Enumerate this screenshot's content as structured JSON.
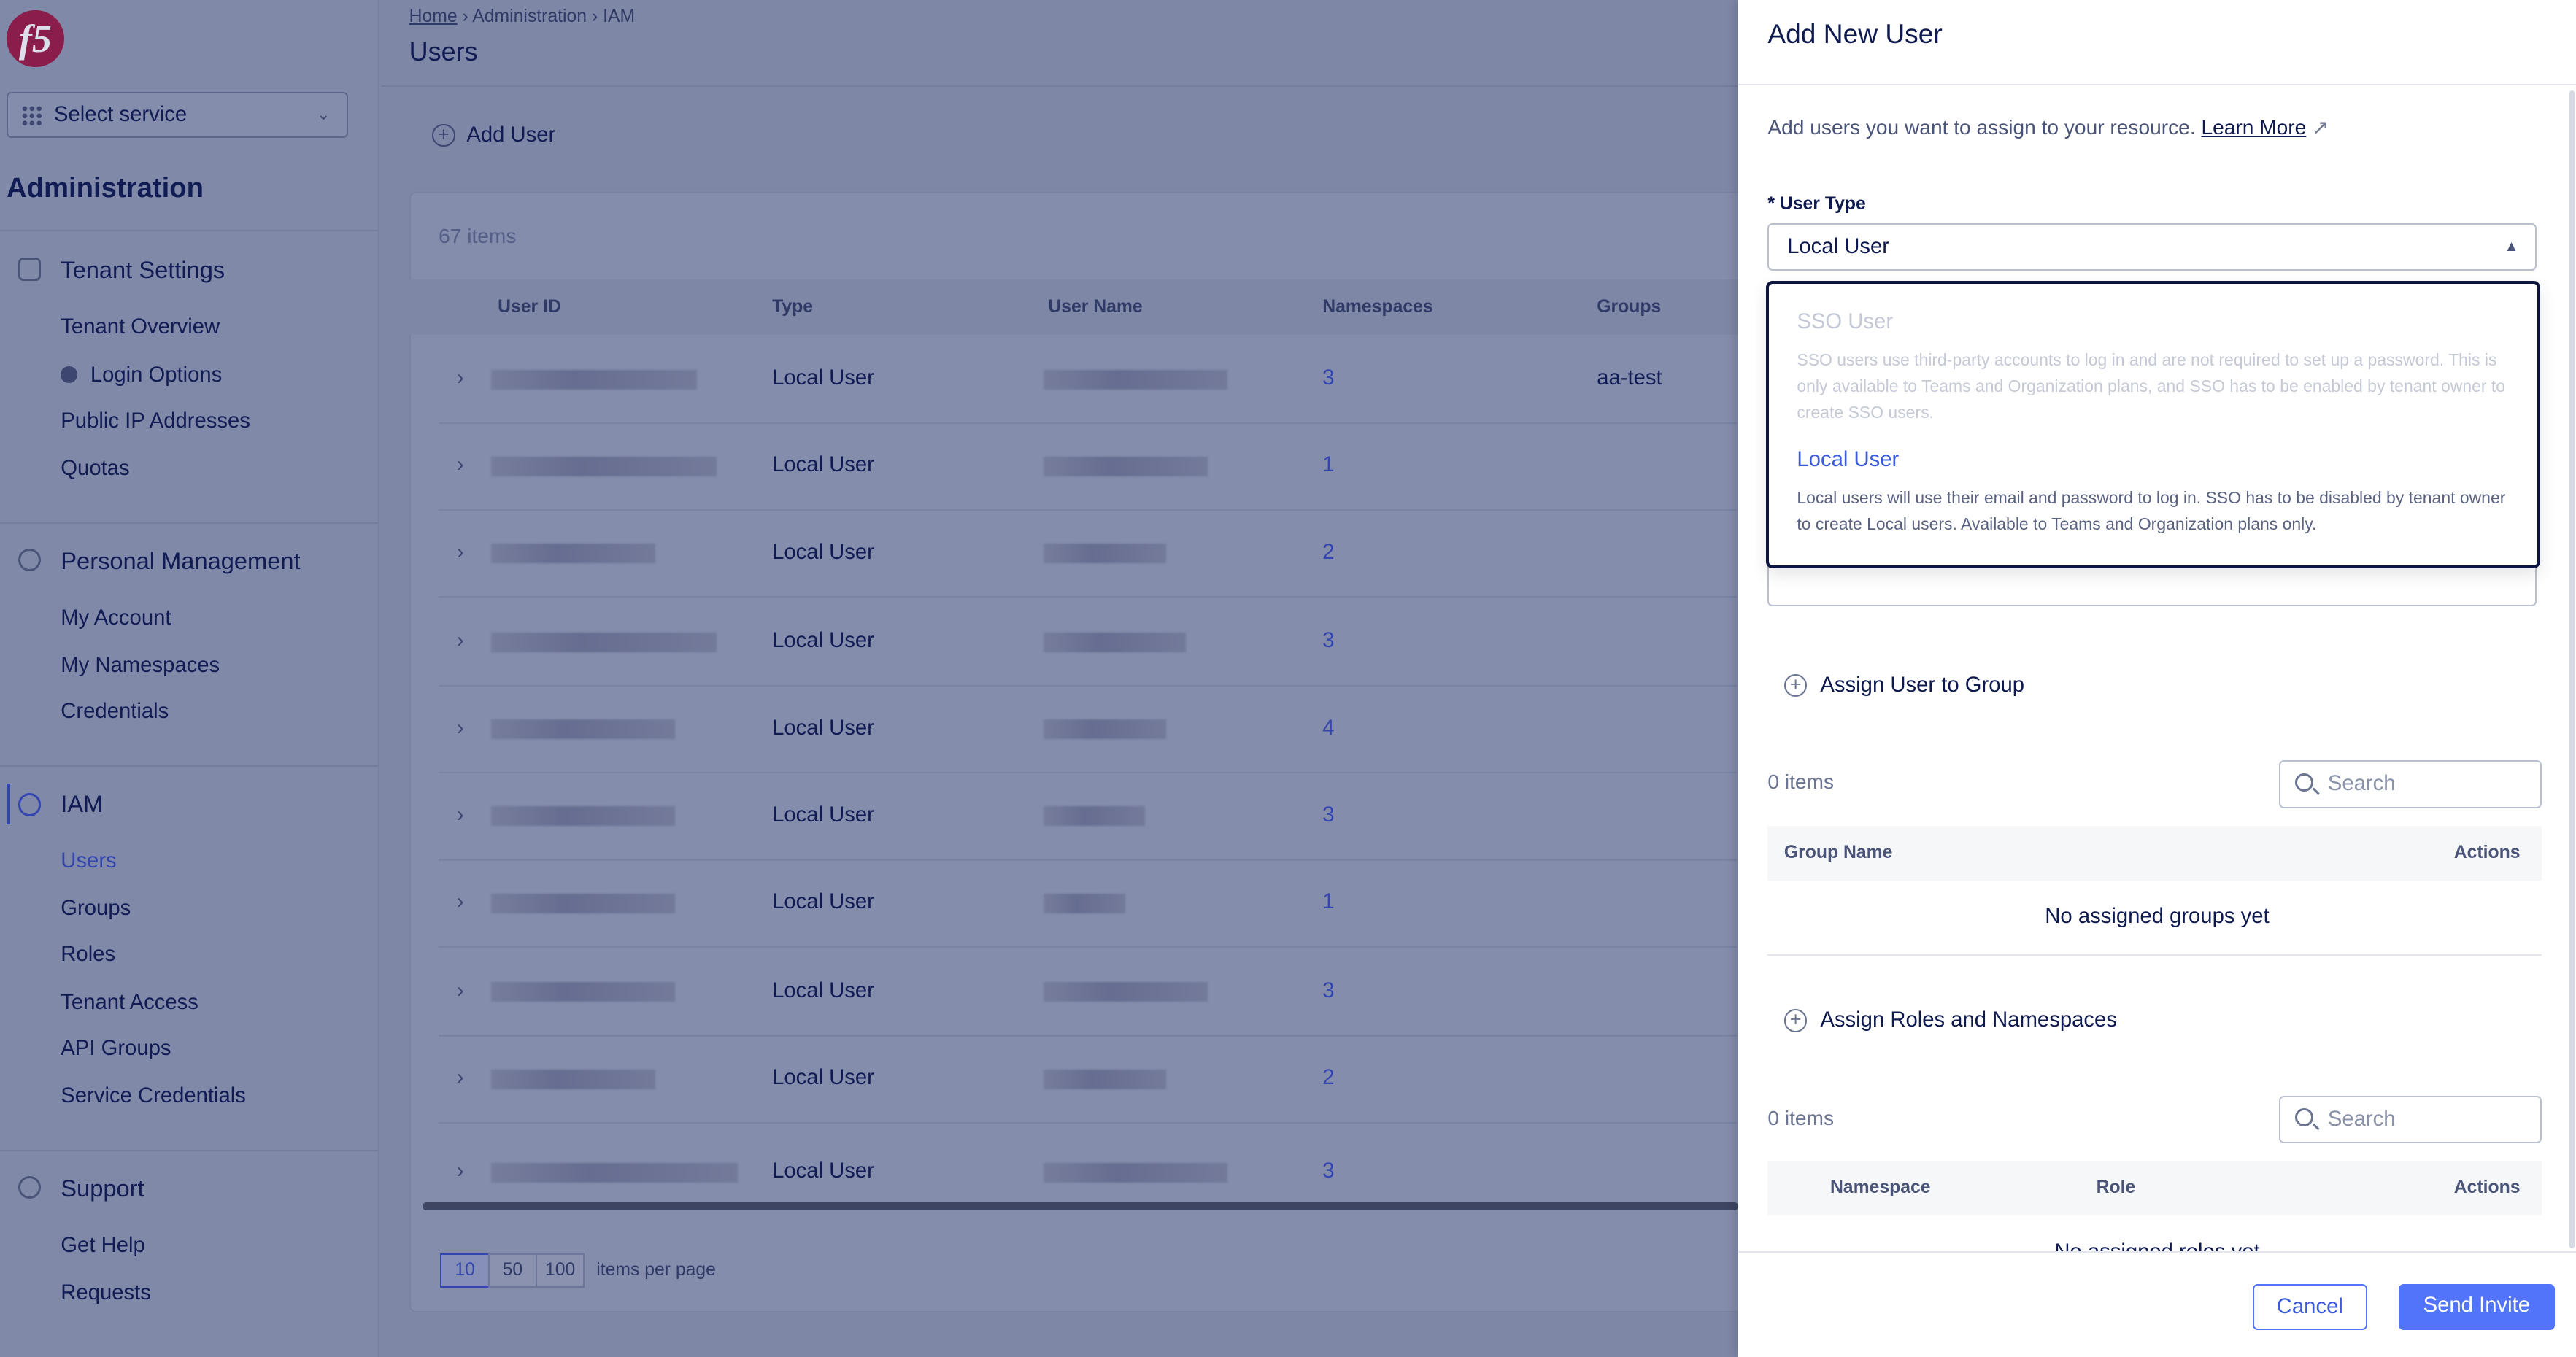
{
  "logo": "f5",
  "sidebar": {
    "service_select": "Select service",
    "heading": "Administration",
    "sections": [
      {
        "title": "Tenant Settings",
        "icon": "building-gear-icon",
        "items": [
          {
            "label": "Tenant Overview"
          },
          {
            "label": "Login Options",
            "icon": "lock-icon"
          },
          {
            "label": "Public IP Addresses"
          },
          {
            "label": "Quotas"
          }
        ]
      },
      {
        "title": "Personal Management",
        "icon": "person-icon",
        "items": [
          {
            "label": "My Account"
          },
          {
            "label": "My Namespaces"
          },
          {
            "label": "Credentials"
          }
        ]
      },
      {
        "title": "IAM",
        "icon": "key-icon",
        "items": [
          {
            "label": "Users",
            "active": true
          },
          {
            "label": "Groups"
          },
          {
            "label": "Roles"
          },
          {
            "label": "Tenant Access"
          },
          {
            "label": "API Groups"
          },
          {
            "label": "Service Credentials"
          }
        ]
      },
      {
        "title": "Support",
        "icon": "lifebuoy-icon",
        "items": [
          {
            "label": "Get Help"
          },
          {
            "label": "Requests"
          }
        ]
      }
    ]
  },
  "header": {
    "breadcrumb": [
      "Home",
      "Administration",
      "IAM"
    ],
    "title": "Users"
  },
  "toolbar": {
    "add_user": "Add User"
  },
  "table": {
    "count": "67 items",
    "columns": [
      "User ID",
      "Type",
      "User Name",
      "Namespaces",
      "Groups"
    ],
    "rows": [
      {
        "type": "Local User",
        "namespaces": "3",
        "groups": "aa-test"
      },
      {
        "type": "Local User",
        "namespaces": "1",
        "groups": ""
      },
      {
        "type": "Local User",
        "namespaces": "2",
        "groups": ""
      },
      {
        "type": "Local User",
        "namespaces": "3",
        "groups": ""
      },
      {
        "type": "Local User",
        "namespaces": "4",
        "groups": ""
      },
      {
        "type": "Local User",
        "namespaces": "3",
        "groups": ""
      },
      {
        "type": "Local User",
        "namespaces": "1",
        "groups": ""
      },
      {
        "type": "Local User",
        "namespaces": "3",
        "groups": ""
      },
      {
        "type": "Local User",
        "namespaces": "2",
        "groups": ""
      },
      {
        "type": "Local User",
        "namespaces": "3",
        "groups": ""
      }
    ],
    "page_sizes": [
      "10",
      "50",
      "100"
    ],
    "page_size_selected": "10",
    "per_page_label": "items per page"
  },
  "drawer": {
    "title": "Add New User",
    "description": "Add users you want to assign to your resource.",
    "learn_more": "Learn More",
    "user_type_label": "* User Type",
    "user_type_value": "Local User",
    "options": [
      {
        "title": "SSO User",
        "description": "SSO users use third-party accounts to log in and are not required to set up a password. This is only available to Teams and Organization plans, and SSO has to be enabled by tenant owner to create SSO users.",
        "disabled": true
      },
      {
        "title": "Local User",
        "description": "Local users will use their email and password to log in. SSO has to be disabled by tenant owner to create Local users. Available to Teams and Organization plans only.",
        "selected": true
      }
    ],
    "groups": {
      "assign_label": "Assign User to Group",
      "count": "0 items",
      "search_placeholder": "Search",
      "columns": [
        "Group Name",
        "Actions"
      ],
      "empty": "No assigned groups yet"
    },
    "roles": {
      "assign_label": "Assign Roles and Namespaces",
      "count": "0 items",
      "search_placeholder": "Search",
      "columns": [
        "Namespace",
        "Role",
        "Actions"
      ],
      "empty": "No assigned roles yet"
    },
    "cancel": "Cancel",
    "send": "Send Invite"
  },
  "colors": {
    "accent": "#3b5bdb",
    "primary_button": "#5174fb",
    "logo": "#c8102e"
  }
}
